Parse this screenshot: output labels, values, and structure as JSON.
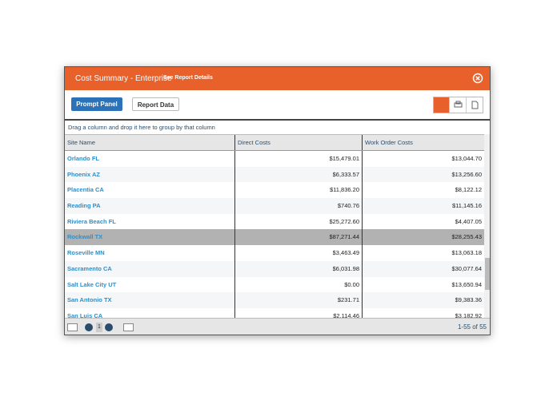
{
  "header": {
    "title": "Cost Summary - Enterprise",
    "link": "See Report Details"
  },
  "toolbar": {
    "prompt_panel": "Prompt Panel",
    "report_data": "Report Data"
  },
  "group_hint": "Drag a column and drop it here to group by that column",
  "table": {
    "columns": [
      "Site Name",
      "Direct Costs",
      "Work Order Costs"
    ],
    "rows": [
      [
        "Orlando FL",
        "$15,479.01",
        "$13,044.70"
      ],
      [
        "Phoenix AZ",
        "$6,333.57",
        "$13,256.60"
      ],
      [
        "Placentia CA",
        "$11,836.20",
        "$8,122.12"
      ],
      [
        "Reading PA",
        "$740.76",
        "$11,145.16"
      ],
      [
        "Riviera Beach FL",
        "$25,272.60",
        "$4,407.05"
      ],
      [
        "Rockwall TX",
        "$87,271.44",
        "$28,255.43"
      ],
      [
        "Roseville MN",
        "$3,463.49",
        "$13,063.18"
      ],
      [
        "Sacramento CA",
        "$6,031.98",
        "$30,077.64"
      ],
      [
        "Salt Lake City UT",
        "$0.00",
        "$13,650.94"
      ],
      [
        "San Antonio TX",
        "$231.71",
        "$9,383.36"
      ],
      [
        "San Luis CA",
        "$2,114.46",
        "$3,182.92"
      ]
    ]
  },
  "footer": {
    "page": "1",
    "count": "1-55 of 55"
  }
}
